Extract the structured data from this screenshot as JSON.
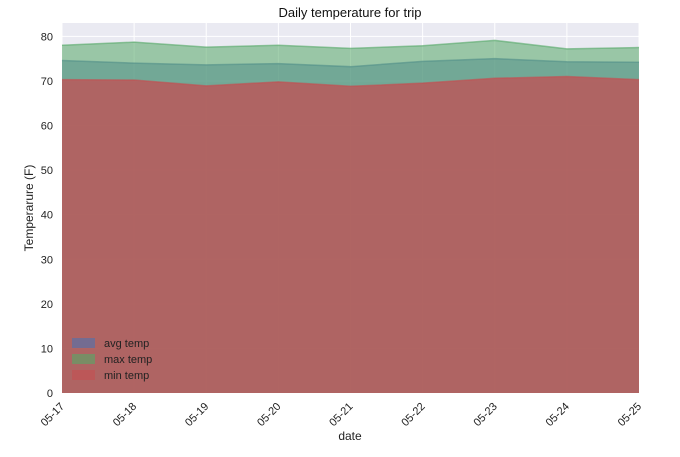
{
  "chart_data": {
    "type": "area",
    "title": "Daily temperature for trip",
    "xlabel": "date",
    "ylabel": "Temperarure (F)",
    "categories": [
      "05-17",
      "05-18",
      "05-19",
      "05-20",
      "05-21",
      "05-22",
      "05-23",
      "05-24",
      "05-25"
    ],
    "ylim": [
      0,
      83
    ],
    "yticks": [
      0,
      10,
      20,
      30,
      40,
      50,
      60,
      70,
      80
    ],
    "grid": true,
    "stacked": false,
    "legend_position": "lower-left",
    "background": "#eaeaf2",
    "series": [
      {
        "name": "avg temp",
        "color": "#4c72b0",
        "values": [
          74.6,
          74.0,
          73.6,
          73.9,
          73.2,
          74.4,
          75.0,
          74.3,
          74.2
        ]
      },
      {
        "name": "max temp",
        "color": "#55a868",
        "values": [
          78.0,
          78.7,
          77.6,
          78.0,
          77.3,
          77.9,
          79.1,
          77.2,
          77.5
        ]
      },
      {
        "name": "min temp",
        "color": "#c44e52",
        "values": [
          70.3,
          70.2,
          68.9,
          69.8,
          68.8,
          69.5,
          70.6,
          71.0,
          70.3
        ]
      }
    ]
  }
}
